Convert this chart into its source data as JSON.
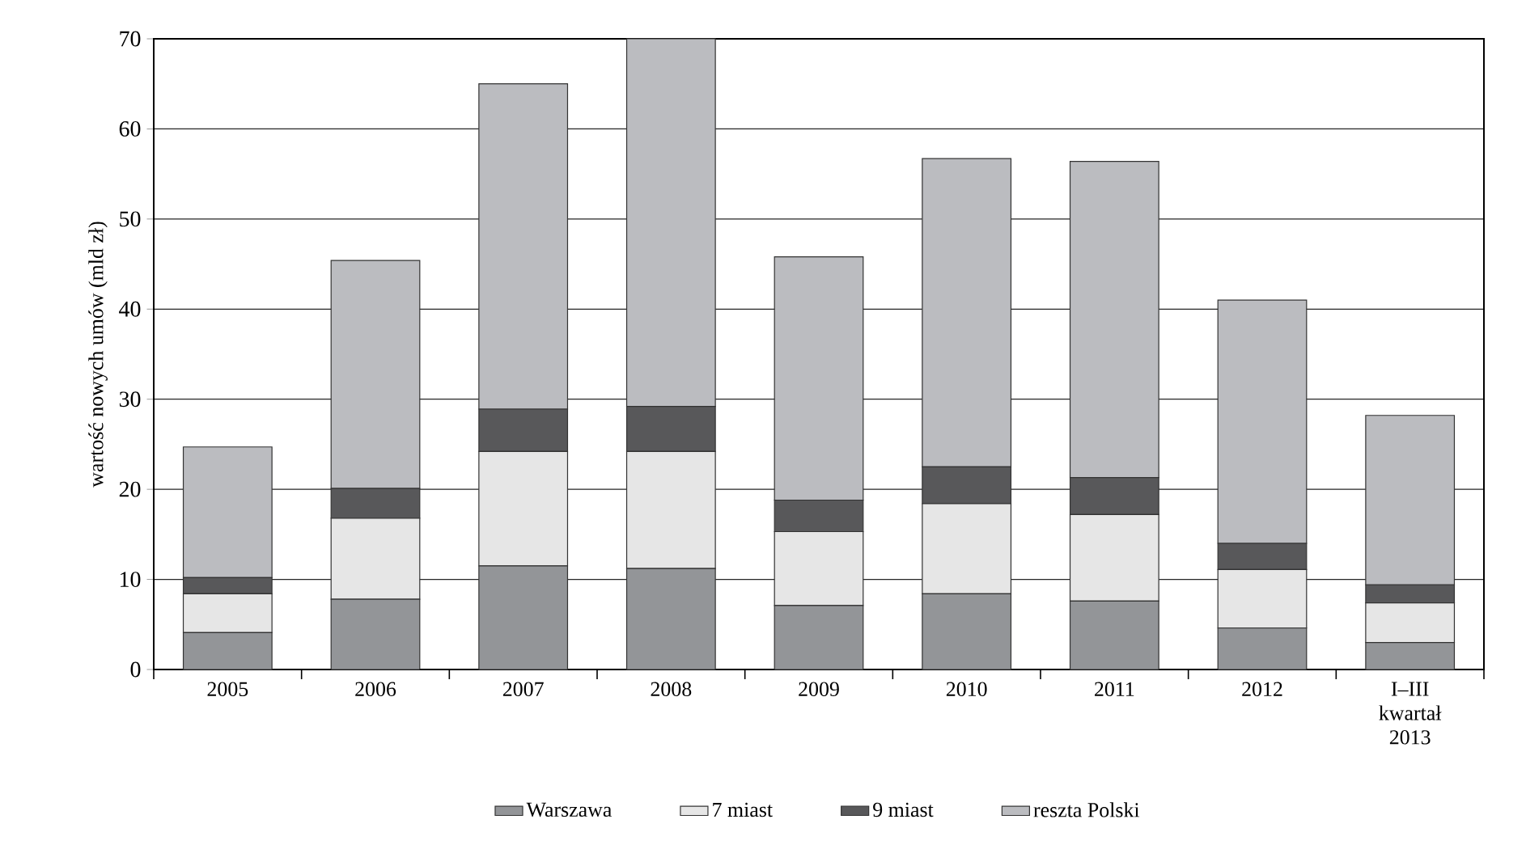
{
  "chart_data": {
    "type": "bar",
    "stacked": true,
    "ylabel": "wartość nowych umów (mld zł)",
    "categories": [
      "2005",
      "2006",
      "2007",
      "2008",
      "2009",
      "2010",
      "2011",
      "2012",
      "I–III kwartał 2013"
    ],
    "series": [
      {
        "name": "Warszawa",
        "color": "#939598",
        "values": [
          4.1,
          7.8,
          11.5,
          11.2,
          7.1,
          8.4,
          7.6,
          4.6,
          3.0
        ]
      },
      {
        "name": "7 miast",
        "color": "#e6e6e6",
        "values": [
          4.3,
          9.0,
          12.7,
          13.0,
          8.2,
          10.0,
          9.6,
          6.5,
          4.4
        ]
      },
      {
        "name": "9 miast",
        "color": "#58585a",
        "values": [
          1.8,
          3.3,
          4.7,
          5.0,
          3.5,
          4.1,
          4.1,
          2.9,
          2.0
        ]
      },
      {
        "name": "reszta Polski",
        "color": "#bbbcc0",
        "values": [
          14.5,
          25.3,
          36.1,
          40.8,
          27.0,
          34.2,
          35.1,
          27.0,
          18.8
        ]
      }
    ],
    "ylim": [
      0,
      70
    ],
    "yticks": [
      0,
      10,
      20,
      30,
      40,
      50,
      60,
      70
    ],
    "grid": "y",
    "legend": "bottom"
  }
}
